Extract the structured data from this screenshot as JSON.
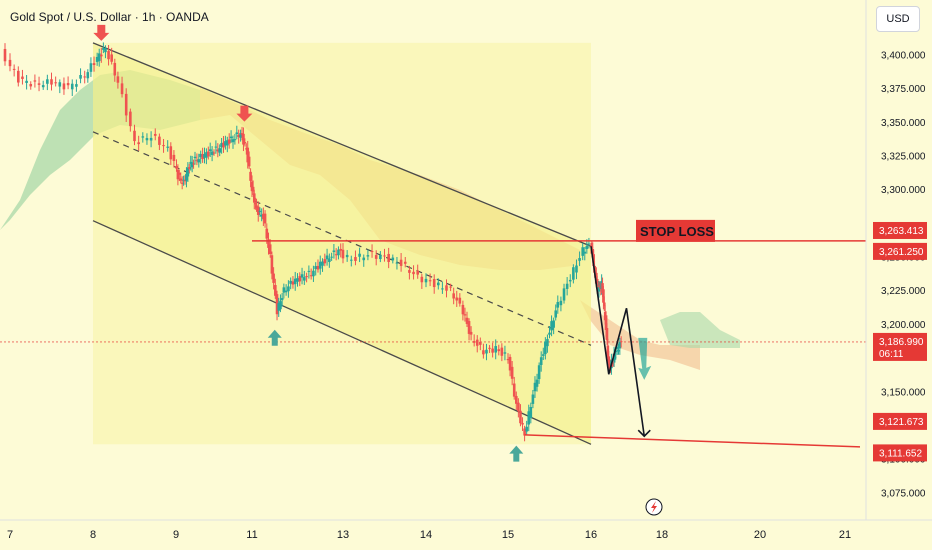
{
  "header": {
    "title": "Gold Spot / U.S. Dollar · 1h · OANDA",
    "currency": "USD"
  },
  "colors": {
    "background": "#fdfbd6",
    "channel_fill": "#f4f08a",
    "cloud_bull": "#a8d8a8",
    "cloud_bear": "#f0b88a",
    "candle_up": "#26a69a",
    "candle_down": "#ef5350",
    "level_line": "#e53935",
    "projection": "#131722",
    "badge_red": "#e53935"
  },
  "chart_data": {
    "type": "candlestick",
    "instrument": "Gold Spot / U.S. Dollar",
    "timeframe": "1h",
    "source": "OANDA",
    "x_ticks": [
      "7",
      "8",
      "9",
      "11",
      "13",
      "14",
      "15",
      "16",
      "18",
      "20",
      "21"
    ],
    "y_ticks": [
      "3,400.000",
      "3,375.000",
      "3,350.000",
      "3,325.000",
      "3,300.000",
      "3,250.000",
      "3,225.000",
      "3,200.000",
      "3,150.000",
      "3,100.000",
      "3,075.000"
    ],
    "ylim": [
      3061,
      3426
    ],
    "price_labels": [
      {
        "value": "3,263.413",
        "price": 3263.413
      },
      {
        "value": "3,261.250",
        "price": 3261.25
      },
      {
        "value": "3,186.990",
        "price": 3186.99,
        "countdown": "06:11"
      },
      {
        "value": "3,121.673",
        "price": 3121.673
      },
      {
        "value": "3,111.652",
        "price": 3111.652
      }
    ],
    "annotations": {
      "stop_loss_label": "STOP LOSS",
      "stop_loss_price": 3262,
      "target_price": 3112
    },
    "channel": {
      "upper": [
        [
          8.0,
          3409
        ],
        [
          16.0,
          3258
        ]
      ],
      "lower": [
        [
          8.0,
          3277
        ],
        [
          16.0,
          3111
        ]
      ]
    },
    "projection_path": [
      [
        16.0,
        3258
      ],
      [
        16.5,
        3163
      ],
      [
        17.0,
        3212
      ],
      [
        17.5,
        3117
      ]
    ],
    "signals": [
      {
        "type": "down-arrow",
        "x": 8.1,
        "price": 3412
      },
      {
        "type": "down-arrow",
        "x": 10.8,
        "price": 3352
      },
      {
        "type": "up-arrow",
        "x": 11.5,
        "price": 3196
      },
      {
        "type": "up-arrow",
        "x": 15.1,
        "price": 3110
      },
      {
        "type": "down-arrow",
        "x": 17.5,
        "price": 3190
      }
    ],
    "price_path": [
      [
        6.9,
        3402
      ],
      [
        7.1,
        3382
      ],
      [
        7.3,
        3378
      ],
      [
        7.5,
        3380
      ],
      [
        7.7,
        3376
      ],
      [
        7.9,
        3385
      ],
      [
        8.05,
        3398
      ],
      [
        8.15,
        3405
      ],
      [
        8.3,
        3380
      ],
      [
        8.5,
        3335
      ],
      [
        8.7,
        3340
      ],
      [
        8.9,
        3330
      ],
      [
        9.05,
        3310
      ],
      [
        9.2,
        3305
      ],
      [
        9.35,
        3318
      ],
      [
        9.5,
        3322
      ],
      [
        9.7,
        3325
      ],
      [
        9.9,
        3328
      ],
      [
        10.1,
        3330
      ],
      [
        10.3,
        3335
      ],
      [
        10.5,
        3338
      ],
      [
        10.7,
        3342
      ],
      [
        10.85,
        3330
      ],
      [
        11.0,
        3300
      ],
      [
        11.1,
        3285
      ],
      [
        11.25,
        3280
      ],
      [
        11.4,
        3250
      ],
      [
        11.55,
        3210
      ],
      [
        11.7,
        3225
      ],
      [
        11.9,
        3232
      ],
      [
        12.1,
        3235
      ],
      [
        12.3,
        3238
      ],
      [
        12.5,
        3245
      ],
      [
        12.7,
        3250
      ],
      [
        12.9,
        3255
      ],
      [
        13.1,
        3248
      ],
      [
        13.3,
        3252
      ],
      [
        13.5,
        3250
      ],
      [
        13.7,
        3245
      ],
      [
        13.9,
        3235
      ],
      [
        14.1,
        3230
      ],
      [
        14.3,
        3225
      ],
      [
        14.45,
        3210
      ],
      [
        14.55,
        3190
      ],
      [
        14.7,
        3180
      ],
      [
        14.85,
        3182
      ],
      [
        15.0,
        3175
      ],
      [
        15.1,
        3140
      ],
      [
        15.2,
        3118
      ],
      [
        15.3,
        3148
      ],
      [
        15.4,
        3175
      ],
      [
        15.5,
        3195
      ],
      [
        15.6,
        3215
      ],
      [
        15.75,
        3235
      ],
      [
        15.9,
        3255
      ],
      [
        16.0,
        3260
      ],
      [
        16.1,
        3240
      ],
      [
        16.2,
        3225
      ],
      [
        16.3,
        3230
      ],
      [
        16.4,
        3205
      ],
      [
        16.5,
        3168
      ],
      [
        16.6,
        3172
      ],
      [
        16.7,
        3180
      ],
      [
        16.85,
        3187
      ]
    ]
  }
}
